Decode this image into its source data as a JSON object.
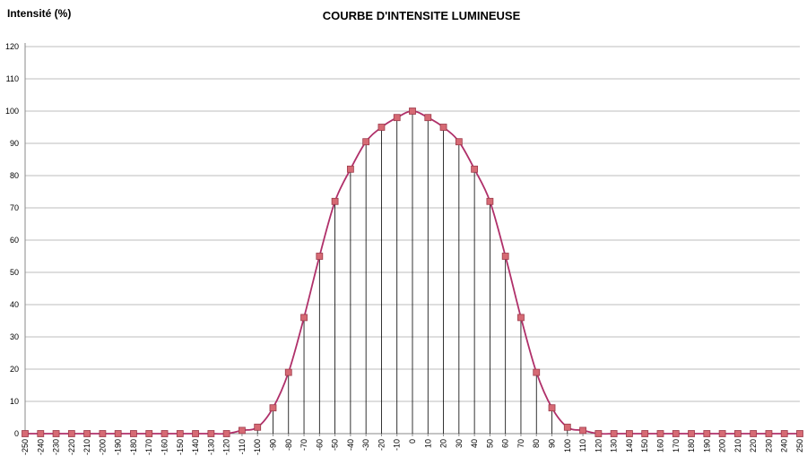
{
  "chart_data": {
    "type": "line",
    "title": "COURBE D'INTENSITE LUMINEUSE",
    "ylabel": "Intensité (%)",
    "xlabel": "",
    "ylim": [
      0,
      120
    ],
    "yticks": [
      0,
      10,
      20,
      30,
      40,
      50,
      60,
      70,
      80,
      90,
      100,
      110,
      120
    ],
    "xlim": [
      -250,
      250
    ],
    "grid": true,
    "x": [
      -250,
      -240,
      -230,
      -220,
      -210,
      -200,
      -190,
      -180,
      -170,
      -160,
      -150,
      -140,
      -130,
      -120,
      -110,
      -100,
      -90,
      -80,
      -70,
      -60,
      -50,
      -40,
      -30,
      -20,
      -10,
      0,
      10,
      20,
      30,
      40,
      50,
      60,
      70,
      80,
      90,
      100,
      110,
      120,
      130,
      140,
      150,
      160,
      170,
      180,
      190,
      200,
      210,
      220,
      230,
      240,
      250
    ],
    "series": [
      {
        "values": [
          0,
          0,
          0,
          0,
          0,
          0,
          0,
          0,
          0,
          0,
          0,
          0,
          0,
          0,
          1,
          2,
          8,
          19,
          36,
          55,
          72,
          82,
          90.5,
          95,
          98,
          100,
          98,
          95,
          90.5,
          82,
          72,
          55,
          36,
          19,
          8,
          2,
          1,
          0,
          0,
          0,
          0,
          0,
          0,
          0,
          0,
          0,
          0,
          0,
          0,
          0,
          0
        ],
        "color": "#b0306a",
        "marker_color": "#d66a74"
      }
    ],
    "drop_lines": true
  }
}
